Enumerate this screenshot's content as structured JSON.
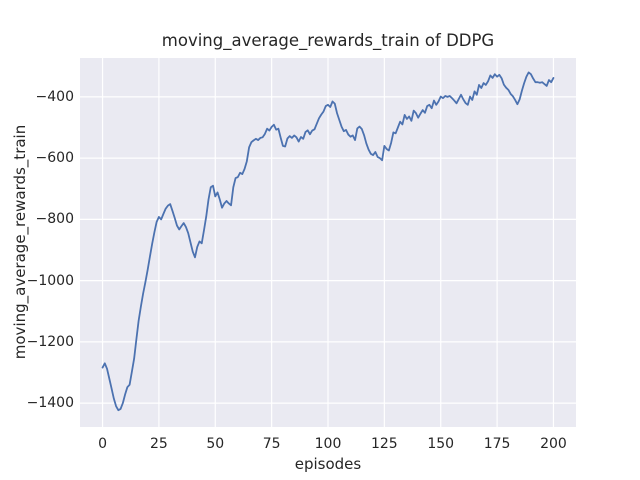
{
  "figure": {
    "background_color": "#ffffff",
    "axes_background_color": "#eaeaf2",
    "grid_color": "#ffffff",
    "text_color": "#262626",
    "line_color": "#4c72b0"
  },
  "chart_data": {
    "type": "line",
    "title": "moving_average_rewards_train of DDPG",
    "xlabel": "episodes",
    "ylabel": "moving_average_rewards_train",
    "legend": null,
    "grid": true,
    "xlim": [
      -10,
      210
    ],
    "ylim": [
      -1478,
      -273
    ],
    "x_ticks": [
      0,
      25,
      50,
      75,
      100,
      125,
      150,
      175,
      200
    ],
    "x_tick_labels": [
      "0",
      "25",
      "50",
      "75",
      "100",
      "125",
      "150",
      "175",
      "200"
    ],
    "y_ticks": [
      -400,
      -600,
      -800,
      -1000,
      -1200,
      -1400
    ],
    "y_tick_labels": [
      "−400",
      "−600",
      "−800",
      "−1000",
      "−1200",
      "−1400"
    ],
    "series": [
      {
        "name": "moving_average_rewards_train",
        "x_start": 0,
        "x_step": 1,
        "y": [
          -1284,
          -1270,
          -1288,
          -1320,
          -1352,
          -1385,
          -1410,
          -1423,
          -1419,
          -1400,
          -1372,
          -1348,
          -1340,
          -1298,
          -1255,
          -1192,
          -1131,
          -1085,
          -1042,
          -1005,
          -965,
          -922,
          -880,
          -842,
          -808,
          -792,
          -800,
          -782,
          -765,
          -755,
          -750,
          -772,
          -795,
          -820,
          -833,
          -822,
          -812,
          -825,
          -845,
          -875,
          -905,
          -924,
          -890,
          -872,
          -878,
          -835,
          -790,
          -735,
          -695,
          -690,
          -725,
          -712,
          -735,
          -762,
          -748,
          -740,
          -748,
          -754,
          -695,
          -665,
          -662,
          -648,
          -652,
          -635,
          -610,
          -565,
          -548,
          -542,
          -537,
          -541,
          -534,
          -532,
          -521,
          -504,
          -510,
          -498,
          -491,
          -507,
          -504,
          -533,
          -560,
          -562,
          -536,
          -528,
          -534,
          -526,
          -532,
          -546,
          -531,
          -537,
          -515,
          -509,
          -522,
          -510,
          -506,
          -488,
          -470,
          -458,
          -448,
          -430,
          -426,
          -433,
          -415,
          -422,
          -453,
          -475,
          -497,
          -512,
          -508,
          -523,
          -530,
          -526,
          -541,
          -503,
          -497,
          -505,
          -525,
          -552,
          -572,
          -586,
          -590,
          -580,
          -596,
          -600,
          -607,
          -560,
          -570,
          -575,
          -550,
          -516,
          -519,
          -500,
          -481,
          -490,
          -459,
          -472,
          -464,
          -478,
          -445,
          -453,
          -468,
          -455,
          -443,
          -452,
          -430,
          -426,
          -437,
          -412,
          -426,
          -415,
          -399,
          -404,
          -397,
          -400,
          -397,
          -404,
          -412,
          -421,
          -407,
          -393,
          -408,
          -420,
          -426,
          -399,
          -410,
          -382,
          -393,
          -361,
          -371,
          -355,
          -361,
          -349,
          -330,
          -338,
          -326,
          -334,
          -328,
          -339,
          -360,
          -370,
          -377,
          -390,
          -398,
          -410,
          -424,
          -408,
          -380,
          -355,
          -334,
          -320,
          -326,
          -340,
          -352,
          -352,
          -354,
          -352,
          -358,
          -364,
          -345,
          -352,
          -338
        ]
      }
    ]
  }
}
